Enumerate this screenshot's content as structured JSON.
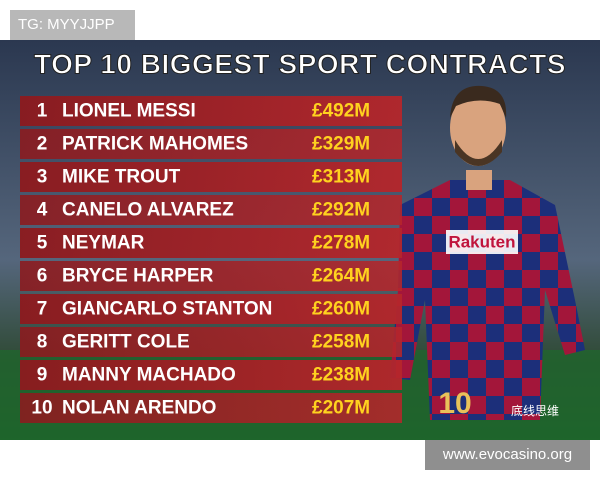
{
  "overlay_tag": "TG: MYYJJPP",
  "title": "TOP 10 BIGGEST SPORT CONTRACTS",
  "table": {
    "rows": [
      [
        "1",
        "LIONEL MESSI",
        "£492M"
      ],
      [
        "2",
        "PATRICK MAHOMES",
        "£329M"
      ],
      [
        "3",
        "MIKE TROUT",
        "£313M"
      ],
      [
        "4",
        "CANELO ALVAREZ",
        "£292M"
      ],
      [
        "5",
        "NEYMAR",
        "£278M"
      ],
      [
        "6",
        "BRYCE HARPER",
        "£264M"
      ],
      [
        "7",
        "GIANCARLO STANTON",
        "£260M"
      ],
      [
        "8",
        "GERITT COLE",
        "£258M"
      ],
      [
        "9",
        "MANNY MACHADO",
        "£238M"
      ],
      [
        "10",
        "NOLAN ARENDO",
        "£207M"
      ]
    ]
  },
  "jersey": {
    "sponsor": "Rakuten",
    "number": "10"
  },
  "watermark": "底线思维",
  "footer_url": "www.evocasino.org"
}
